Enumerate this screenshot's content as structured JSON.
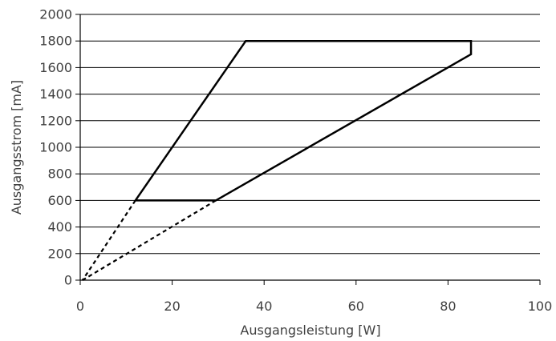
{
  "chart_data": {
    "type": "line",
    "xlabel": "Ausgangsleistung [W]",
    "ylabel": "Ausgangsstrom [mA]",
    "xlim": [
      0,
      100
    ],
    "ylim": [
      0,
      2000
    ],
    "xticks": [
      0,
      20,
      40,
      60,
      80,
      100
    ],
    "yticks": [
      0,
      200,
      400,
      600,
      800,
      1000,
      1200,
      1400,
      1600,
      1800,
      2000
    ],
    "grid": "horizontal",
    "legend": "none",
    "series": [
      {
        "style": "solid",
        "points": [
          [
            12,
            600
          ],
          [
            36,
            1800
          ],
          [
            85,
            1800
          ],
          [
            85,
            1700
          ],
          [
            29.5,
            600
          ],
          [
            12,
            600
          ]
        ]
      },
      {
        "style": "dashed",
        "points": [
          [
            12,
            600
          ],
          [
            0.5,
            0
          ]
        ]
      },
      {
        "style": "dashed",
        "points": [
          [
            29.5,
            600
          ],
          [
            0.5,
            0
          ]
        ]
      }
    ]
  }
}
